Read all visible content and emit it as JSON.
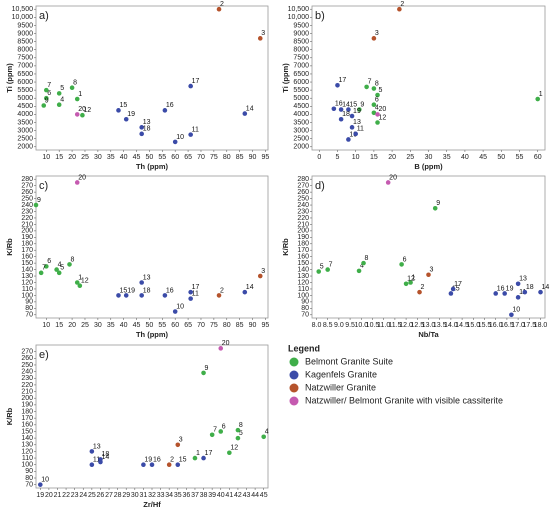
{
  "chart_data": [
    {
      "type": "scatter",
      "panel_label": "a)",
      "x_label": "Th (ppm)",
      "y_label": "Ti (ppm)",
      "xlim": [
        6,
        96
      ],
      "xticks": [
        10,
        15,
        20,
        25,
        30,
        35,
        40,
        45,
        50,
        55,
        60,
        65,
        70,
        75,
        80,
        85,
        90,
        95
      ],
      "ylim": [
        1800,
        10700
      ],
      "yticks": [
        2000,
        2500,
        3000,
        3500,
        4000,
        4500,
        5000,
        5500,
        6000,
        6500,
        7000,
        7500,
        8000,
        8500,
        9000,
        9500,
        {
          "value": 10000,
          "label": "10,000"
        },
        {
          "value": 10500,
          "label": "10,500"
        }
      ],
      "series": [
        {
          "name": "Belmont Granite Suite",
          "color": "#3fae49",
          "labels": [
            "1",
            "4",
            "5",
            "6",
            "7",
            "8",
            "9",
            "12"
          ],
          "x": [
            22,
            15,
            15,
            10,
            10,
            20,
            9,
            24
          ],
          "values": [
            4950,
            4600,
            5300,
            5000,
            5500,
            5650,
            4550,
            3950
          ]
        },
        {
          "name": "Kagenfels Granite",
          "color": "#3b4ba8",
          "labels": [
            "10",
            "11",
            "13",
            "14",
            "15",
            "16",
            "17",
            "18",
            "19"
          ],
          "x": [
            60,
            66,
            47,
            87,
            38,
            56,
            66,
            47,
            41
          ],
          "values": [
            2300,
            2750,
            3200,
            4050,
            4250,
            4250,
            5750,
            2800,
            3700
          ]
        },
        {
          "name": "Natzwiller Granite",
          "color": "#b5532c",
          "labels": [
            "2",
            "3"
          ],
          "x": [
            77,
            93
          ],
          "values": [
            10500,
            8700
          ]
        },
        {
          "name": "Natzwiller/ Belmont Granite with visible cassiterite",
          "color": "#c55ab0",
          "labels": [
            "20"
          ],
          "x": [
            22
          ],
          "values": [
            4000
          ]
        }
      ]
    },
    {
      "type": "scatter",
      "panel_label": "b)",
      "x_label": "B (ppm)",
      "y_label": "Ti (ppm)",
      "xlim": [
        -2,
        62
      ],
      "xticks": [
        0,
        5,
        10,
        15,
        20,
        25,
        30,
        35,
        40,
        45,
        50,
        55,
        60
      ],
      "ylim": [
        1800,
        10700
      ],
      "yticks": [
        2000,
        2500,
        3000,
        3500,
        4000,
        4500,
        5000,
        5500,
        6000,
        6500,
        7000,
        7500,
        8000,
        8500,
        9000,
        9500,
        {
          "value": 10000,
          "label": "10,000"
        },
        {
          "value": 10500,
          "label": "10,500"
        }
      ],
      "series": [
        {
          "color": "#3fae49",
          "labels": [
            "1",
            "4",
            "5",
            "6",
            "7",
            "8",
            "9",
            "12"
          ],
          "x": [
            60,
            15,
            16,
            15,
            13,
            15,
            11,
            16
          ],
          "values": [
            4950,
            4100,
            5200,
            4600,
            5700,
            5600,
            4300,
            3500
          ]
        },
        {
          "color": "#3b4ba8",
          "labels": [
            "10",
            "11",
            "13",
            "14",
            "15",
            "16",
            "17",
            "18",
            "19"
          ],
          "x": [
            8,
            10,
            9,
            6,
            8,
            4,
            5,
            6,
            9
          ],
          "values": [
            2450,
            2800,
            3200,
            4300,
            4300,
            4350,
            5800,
            3700,
            3900
          ]
        },
        {
          "color": "#b5532c",
          "labels": [
            "2",
            "3"
          ],
          "x": [
            22,
            15
          ],
          "values": [
            10500,
            8700
          ]
        },
        {
          "color": "#c55ab0",
          "labels": [
            "20"
          ],
          "x": [
            16
          ],
          "values": [
            4000
          ]
        }
      ]
    },
    {
      "type": "scatter",
      "panel_label": "c)",
      "x_label": "Th (ppm)",
      "y_label": "K/Rb",
      "xlim": [
        6,
        96
      ],
      "xticks": [
        10,
        15,
        20,
        25,
        30,
        35,
        40,
        45,
        50,
        55,
        60,
        65,
        70,
        75,
        80,
        85,
        90,
        95
      ],
      "ylim": [
        65,
        285
      ],
      "yticks": [
        70,
        80,
        90,
        100,
        110,
        120,
        130,
        140,
        150,
        160,
        170,
        180,
        190,
        200,
        210,
        220,
        230,
        240,
        250,
        260,
        270,
        280
      ],
      "series": [
        {
          "color": "#3fae49",
          "labels": [
            "1",
            "4",
            "5",
            "6",
            "7",
            "8",
            "9",
            "12"
          ],
          "x": [
            22,
            14,
            15,
            10,
            8,
            19,
            6,
            23
          ],
          "values": [
            120,
            140,
            135,
            145,
            135,
            148,
            240,
            115
          ]
        },
        {
          "color": "#3b4ba8",
          "labels": [
            "10",
            "11",
            "13",
            "14",
            "15",
            "16",
            "17",
            "18",
            "19"
          ],
          "x": [
            60,
            66,
            47,
            87,
            38,
            56,
            66,
            47,
            41
          ],
          "values": [
            75,
            95,
            120,
            105,
            100,
            100,
            105,
            100,
            100
          ]
        },
        {
          "color": "#b5532c",
          "labels": [
            "2",
            "3"
          ],
          "x": [
            77,
            93
          ],
          "values": [
            100,
            130
          ]
        },
        {
          "color": "#c55ab0",
          "labels": [
            "20"
          ],
          "x": [
            22
          ],
          "values": [
            275
          ]
        }
      ]
    },
    {
      "type": "scatter",
      "panel_label": "d)",
      "x_label": "Nb/Ta",
      "y_label": "K/Rb",
      "xlim": [
        7.8,
        18.2
      ],
      "xticks": [
        {
          "value": 8,
          "label": "8.0"
        },
        8.5,
        {
          "value": 9,
          "label": "9.0"
        },
        9.5,
        {
          "value": 10,
          "label": "10.0"
        },
        10.5,
        {
          "value": 11,
          "label": "11.0"
        },
        11.5,
        {
          "value": 12,
          "label": "12.0"
        },
        12.5,
        {
          "value": 13,
          "label": "13.0"
        },
        13.5,
        {
          "value": 14,
          "label": "14.0"
        },
        14.5,
        {
          "value": 15,
          "label": "15.0"
        },
        15.5,
        {
          "value": 16,
          "label": "16.0"
        },
        16.5,
        {
          "value": 17,
          "label": "17.0"
        },
        17.5,
        {
          "value": 18,
          "label": "18.0"
        }
      ],
      "ylim": [
        65,
        285
      ],
      "yticks": [
        70,
        80,
        90,
        100,
        110,
        120,
        130,
        140,
        150,
        160,
        170,
        180,
        190,
        200,
        210,
        220,
        230,
        240,
        250,
        260,
        270,
        280
      ],
      "series": [
        {
          "color": "#3fae49",
          "labels": [
            "1",
            "4",
            "5",
            "6",
            "7",
            "8",
            "9",
            "12"
          ],
          "x": [
            12.2,
            9.9,
            8.1,
            11.8,
            8.5,
            10.1,
            13.3,
            12
          ],
          "values": [
            120,
            138,
            137,
            148,
            140,
            150,
            235,
            118
          ]
        },
        {
          "color": "#3b4ba8",
          "labels": [
            "10",
            "11",
            "13",
            "14",
            "15",
            "16",
            "17",
            "18",
            "19"
          ],
          "x": [
            16.7,
            17,
            17,
            18,
            14,
            16,
            14.1,
            17.3,
            16.4
          ],
          "values": [
            70,
            97,
            118,
            105,
            103,
            103,
            110,
            105,
            103
          ]
        },
        {
          "color": "#b5532c",
          "labels": [
            "2",
            "3"
          ],
          "x": [
            12.6,
            13
          ],
          "values": [
            105,
            132
          ]
        },
        {
          "color": "#c55ab0",
          "labels": [
            "20"
          ],
          "x": [
            11.2
          ],
          "values": [
            275
          ]
        }
      ]
    },
    {
      "type": "scatter",
      "panel_label": "e)",
      "x_label": "Zr/Hf",
      "y_label": "K/Rb",
      "xlim": [
        18.5,
        45.5
      ],
      "xticks": [
        19,
        20,
        21,
        22,
        23,
        24,
        25,
        26,
        27,
        28,
        29,
        30,
        31,
        32,
        33,
        34,
        35,
        36,
        37,
        38,
        39,
        40,
        41,
        42,
        43,
        44,
        45
      ],
      "ylim": [
        65,
        280
      ],
      "yticks": [
        70,
        80,
        90,
        100,
        110,
        120,
        130,
        140,
        150,
        160,
        170,
        180,
        190,
        200,
        210,
        220,
        230,
        240,
        250,
        260,
        270
      ],
      "series": [
        {
          "color": "#3fae49",
          "labels": [
            "1",
            "4",
            "5",
            "6",
            "7",
            "8",
            "9",
            "12"
          ],
          "x": [
            37,
            45,
            42,
            40,
            39,
            42,
            38,
            41
          ],
          "values": [
            110,
            142,
            140,
            150,
            145,
            152,
            238,
            118
          ]
        },
        {
          "color": "#3b4ba8",
          "labels": [
            "10",
            "11",
            "13",
            "14",
            "15",
            "16",
            "17",
            "18",
            "19"
          ],
          "x": [
            19,
            25,
            25,
            26,
            35,
            32,
            38,
            26,
            31
          ],
          "values": [
            70,
            100,
            120,
            104,
            100,
            100,
            110,
            108,
            100
          ]
        },
        {
          "color": "#b5532c",
          "labels": [
            "2",
            "3"
          ],
          "x": [
            34,
            35
          ],
          "values": [
            100,
            130
          ]
        },
        {
          "color": "#c55ab0",
          "labels": [
            "20"
          ],
          "x": [
            40
          ],
          "values": [
            275
          ]
        }
      ]
    }
  ],
  "legend": {
    "title": "Legend"
  }
}
